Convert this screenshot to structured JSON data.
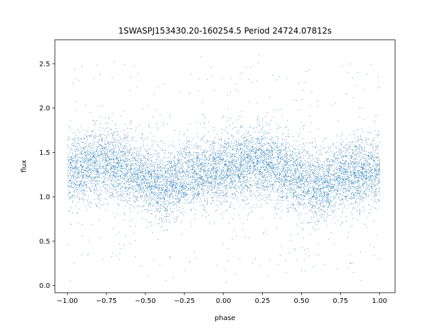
{
  "chart_data": {
    "type": "scatter",
    "title": "1SWASPJ153430.20-160254.5 Period 24724.07812s",
    "xlabel": "phase",
    "ylabel": "flux",
    "xlim": [
      -1.08,
      1.1
    ],
    "ylim": [
      -0.08,
      2.77
    ],
    "x_ticks": [
      -1.0,
      -0.75,
      -0.5,
      -0.25,
      0.0,
      0.25,
      0.5,
      0.75,
      1.0
    ],
    "x_tick_labels": [
      "−1.00",
      "−0.75",
      "−0.50",
      "−0.25",
      "0.00",
      "0.25",
      "0.50",
      "0.75",
      "1.00"
    ],
    "y_ticks": [
      0.0,
      0.5,
      1.0,
      1.5,
      2.0,
      2.5
    ],
    "y_tick_labels": [
      "0.0",
      "0.5",
      "1.0",
      "1.5",
      "2.0",
      "2.5"
    ],
    "grid": false,
    "legend": "none",
    "series": [
      {
        "color": "#1f77b4",
        "x_range": [
          -1.0,
          1.0
        ],
        "trend_x": [
          -1.0,
          -0.75,
          -0.5,
          -0.375,
          -0.25,
          0.0,
          0.25,
          0.5,
          0.625,
          0.75,
          1.0
        ],
        "trend_y": [
          1.3,
          1.4,
          1.22,
          1.12,
          1.24,
          1.33,
          1.4,
          1.22,
          1.12,
          1.24,
          1.3
        ],
        "scatter_std": 0.2
      }
    ]
  }
}
